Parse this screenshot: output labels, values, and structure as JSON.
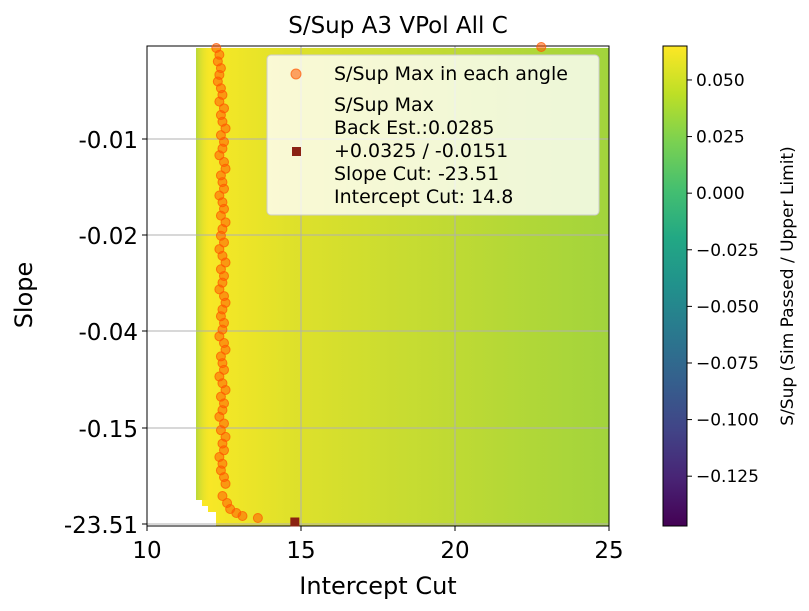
{
  "chart_data": {
    "type": "heatmap",
    "title": "S/Sup A3 VPol All C",
    "xlabel": "Intercept Cut",
    "ylabel": "Slope",
    "xlim": [
      10,
      25
    ],
    "x_ticks": [
      "10",
      "15",
      "20",
      "25"
    ],
    "y_ticks": [
      "-0.01",
      "-0.02",
      "-0.04",
      "-0.15",
      "-23.51"
    ],
    "grid": true,
    "colorbar": {
      "label": "S/Sup (Sim Passed / Upper Limit)",
      "range": [
        -0.147,
        0.065
      ],
      "ticks": [
        "0.050",
        "0.025",
        "0.000",
        "−0.025",
        "−0.050",
        "−0.075",
        "−0.100",
        "−0.125"
      ],
      "tick_values": [
        0.05,
        0.025,
        0.0,
        -0.025,
        -0.05,
        -0.075,
        -0.1,
        -0.125
      ],
      "colormap": "viridis"
    },
    "heatmap_description": {
      "min_intercept_top": 11.6,
      "max_value_region_intercept": 12.6,
      "value_at_right_edge": 0.03,
      "peak_value": 0.0325
    },
    "series": [
      {
        "name": "S/Sup Max in each angle",
        "marker": "circle",
        "color": "#ff5a00",
        "intercept": [
          12.25,
          12.35,
          12.3,
          12.4,
          12.35,
          12.3,
          12.4,
          12.45,
          12.35,
          12.5,
          12.4,
          12.45,
          12.55,
          12.4,
          12.5,
          12.45,
          12.35,
          12.5,
          12.55,
          12.4,
          12.45,
          12.5,
          12.35,
          12.45,
          12.5,
          12.4,
          12.55,
          12.45,
          12.4,
          12.5,
          12.35,
          12.45,
          12.55,
          12.4,
          12.5,
          12.45,
          12.35,
          12.5,
          12.55,
          12.45,
          12.4,
          12.5,
          12.45,
          12.35,
          12.5,
          12.55,
          12.4,
          12.45,
          12.5,
          12.35,
          12.45,
          12.55,
          12.4,
          12.5,
          12.45,
          12.35,
          12.5,
          12.4,
          12.55,
          12.45,
          12.5,
          12.35,
          12.45,
          12.4,
          12.5,
          12.55,
          12.45,
          12.6,
          12.7,
          12.9,
          13.1,
          13.6,
          22.8
        ],
        "slope_rank_from_top": [
          0.0,
          0.03,
          0.06,
          0.09,
          0.12,
          0.15,
          0.18,
          0.21,
          0.24,
          0.27,
          0.3,
          0.33,
          0.36,
          0.39,
          0.42,
          0.45,
          0.48,
          0.51,
          0.54,
          0.57,
          0.6,
          0.63,
          0.66,
          0.69,
          0.72,
          0.75,
          0.78,
          0.81,
          0.84,
          0.87,
          0.9,
          0.93,
          0.96,
          0.99,
          1.02,
          1.05,
          1.08,
          1.11,
          1.14,
          1.17,
          1.2,
          1.23,
          1.26,
          1.29,
          1.32,
          1.35,
          1.38,
          1.41,
          1.44,
          1.47,
          1.5,
          1.53,
          1.56,
          1.59,
          1.62,
          1.65,
          1.68,
          1.71,
          1.74,
          1.77,
          1.8,
          1.83,
          1.86,
          1.89,
          1.92,
          1.95,
          1.98,
          2.01,
          2.04,
          2.07,
          2.1,
          2.13,
          0.0
        ]
      },
      {
        "name": "S/Sup Max\nBack Est.:0.0285\n+0.0325 / -0.0151\nSlope Cut: -23.51\nIntercept Cut: 14.8",
        "marker": "square",
        "color": "#8b2312",
        "intercept": [
          14.8
        ],
        "slope": [
          -23.51
        ]
      }
    ],
    "legend": {
      "placement": "top-right",
      "entries": [
        {
          "label_lines": [
            "S/Sup Max in each angle"
          ]
        },
        {
          "label_lines": [
            "S/Sup Max",
            "Back Est.:0.0285",
            "+0.0325 / -0.0151",
            "Slope Cut: -23.51",
            "Intercept Cut: 14.8"
          ]
        }
      ]
    }
  }
}
